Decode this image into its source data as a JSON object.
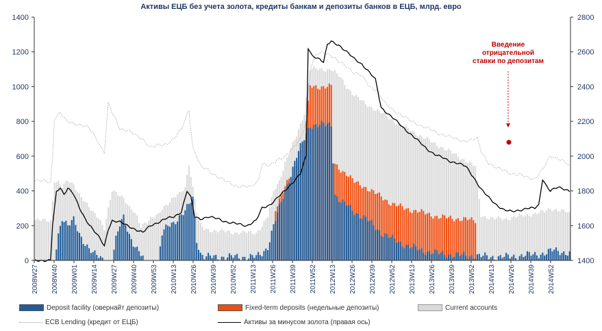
{
  "chart_data": {
    "type": "bar",
    "title": "Активы ЕЦБ без учета золота, кредиты банкам и депозиты банков в ЕЦБ, млрд. евро",
    "x_tick_labels": [
      "2008W27",
      "2008W40",
      "2009W01",
      "2009W14",
      "2009W27",
      "2009W40",
      "2009W53",
      "2010W13",
      "2010W26",
      "2010W39",
      "2010W52",
      "2011W13",
      "2011W26",
      "2011W39",
      "2011W52",
      "2012W13",
      "2012W26",
      "2012W39",
      "2012W52",
      "2013W13",
      "2013W26",
      "2013W39",
      "2013W52",
      "2014W13",
      "2014W26",
      "2014W39",
      "2014W52"
    ],
    "ylim": [
      0,
      1400
    ],
    "y_ticks": [
      0,
      200,
      400,
      600,
      800,
      1000,
      1200,
      1400
    ],
    "y2lim": [
      1400,
      2800
    ],
    "y2_ticks": [
      1400,
      1600,
      1800,
      2000,
      2200,
      2400,
      2600,
      2800
    ],
    "grid": false,
    "legend_position": "bottom",
    "annotation": {
      "lines": [
        "Введение",
        "отрицательной",
        "ставки по депозитам"
      ],
      "color": "#c00000"
    },
    "series": [
      {
        "name": "Deposit facility (овернайт депозиты)",
        "kind": "bar",
        "color": "#1f5c99",
        "keyframes": [
          [
            0,
            0
          ],
          [
            10,
            0
          ],
          [
            12,
            150
          ],
          [
            14,
            250
          ],
          [
            17,
            200
          ],
          [
            20,
            230
          ],
          [
            23,
            150
          ],
          [
            26,
            100
          ],
          [
            30,
            40
          ],
          [
            33,
            20
          ],
          [
            36,
            0
          ],
          [
            40,
            0
          ],
          [
            42,
            120
          ],
          [
            44,
            200
          ],
          [
            46,
            250
          ],
          [
            49,
            150
          ],
          [
            51,
            100
          ],
          [
            53,
            60
          ],
          [
            55,
            30
          ],
          [
            57,
            0
          ],
          [
            64,
            0
          ],
          [
            66,
            150
          ],
          [
            69,
            200
          ],
          [
            72,
            220
          ],
          [
            75,
            250
          ],
          [
            78,
            280
          ],
          [
            80,
            320
          ],
          [
            82,
            360
          ],
          [
            84,
            120
          ],
          [
            86,
            40
          ],
          [
            88,
            20
          ],
          [
            95,
            20
          ],
          [
            105,
            20
          ],
          [
            115,
            20
          ],
          [
            118,
            40
          ],
          [
            121,
            80
          ],
          [
            124,
            200
          ],
          [
            127,
            300
          ],
          [
            130,
            400
          ],
          [
            133,
            500
          ],
          [
            136,
            600
          ],
          [
            140,
            700
          ],
          [
            143,
            780
          ],
          [
            150,
            780
          ],
          [
            154,
            780
          ],
          [
            156,
            380
          ],
          [
            159,
            340
          ],
          [
            162,
            320
          ],
          [
            166,
            280
          ],
          [
            172,
            240
          ],
          [
            180,
            160
          ],
          [
            190,
            100
          ],
          [
            200,
            60
          ],
          [
            210,
            40
          ],
          [
            220,
            30
          ],
          [
            230,
            25
          ],
          [
            238,
            20
          ],
          [
            245,
            20
          ],
          [
            255,
            30
          ],
          [
            265,
            40
          ],
          [
            270,
            60
          ],
          [
            274,
            50
          ],
          [
            278,
            40
          ]
        ]
      },
      {
        "name": "Fixed-term deposits (недельные депозиты)",
        "kind": "bar",
        "color": "#f04e0f",
        "keyframes": [
          [
            0,
            0
          ],
          [
            124,
            0
          ],
          [
            125,
            300
          ],
          [
            130,
            420
          ],
          [
            136,
            560
          ],
          [
            140,
            700
          ],
          [
            143,
            1000
          ],
          [
            154,
            1000
          ],
          [
            155,
            560
          ],
          [
            158,
            530
          ],
          [
            162,
            500
          ],
          [
            166,
            450
          ],
          [
            172,
            420
          ],
          [
            178,
            380
          ],
          [
            185,
            330
          ],
          [
            192,
            300
          ],
          [
            200,
            280
          ],
          [
            210,
            250
          ],
          [
            220,
            240
          ],
          [
            229,
            230
          ],
          [
            230,
            0
          ],
          [
            278,
            0
          ]
        ]
      },
      {
        "name": "Current accounts",
        "kind": "bar",
        "color": "#dadada",
        "keyframes": [
          [
            0,
            230
          ],
          [
            8,
            230
          ],
          [
            10,
            460
          ],
          [
            12,
            450
          ],
          [
            14,
            420
          ],
          [
            17,
            460
          ],
          [
            20,
            440
          ],
          [
            23,
            380
          ],
          [
            26,
            330
          ],
          [
            30,
            280
          ],
          [
            33,
            250
          ],
          [
            36,
            180
          ],
          [
            40,
            400
          ],
          [
            42,
            390
          ],
          [
            44,
            380
          ],
          [
            46,
            360
          ],
          [
            49,
            300
          ],
          [
            51,
            280
          ],
          [
            53,
            250
          ],
          [
            55,
            200
          ],
          [
            57,
            220
          ],
          [
            64,
            260
          ],
          [
            66,
            300
          ],
          [
            69,
            330
          ],
          [
            72,
            360
          ],
          [
            75,
            380
          ],
          [
            78,
            420
          ],
          [
            80,
            560
          ],
          [
            82,
            420
          ],
          [
            84,
            280
          ],
          [
            86,
            200
          ],
          [
            88,
            180
          ],
          [
            95,
            170
          ],
          [
            105,
            160
          ],
          [
            115,
            160
          ],
          [
            118,
            200
          ],
          [
            121,
            250
          ],
          [
            124,
            400
          ],
          [
            127,
            460
          ],
          [
            130,
            560
          ],
          [
            133,
            640
          ],
          [
            136,
            720
          ],
          [
            140,
            850
          ],
          [
            143,
            1100
          ],
          [
            150,
            1100
          ],
          [
            154,
            1100
          ],
          [
            156,
            1080
          ],
          [
            159,
            1050
          ],
          [
            162,
            1000
          ],
          [
            166,
            950
          ],
          [
            172,
            900
          ],
          [
            180,
            850
          ],
          [
            190,
            780
          ],
          [
            200,
            720
          ],
          [
            210,
            660
          ],
          [
            220,
            600
          ],
          [
            229,
            540
          ],
          [
            232,
            260
          ],
          [
            238,
            240
          ],
          [
            245,
            240
          ],
          [
            255,
            260
          ],
          [
            265,
            280
          ],
          [
            268,
            300
          ],
          [
            272,
            290
          ],
          [
            276,
            280
          ],
          [
            278,
            270
          ]
        ]
      },
      {
        "name": "ECB  Lending (кредит от ЕЦБ)",
        "kind": "line",
        "dashed": true,
        "color": "#b0b0b0",
        "keyframes": [
          [
            0,
            460
          ],
          [
            8,
            450
          ],
          [
            9,
            600
          ],
          [
            10,
            820
          ],
          [
            13,
            850
          ],
          [
            16,
            800
          ],
          [
            20,
            790
          ],
          [
            24,
            780
          ],
          [
            28,
            760
          ],
          [
            32,
            700
          ],
          [
            36,
            620
          ],
          [
            38,
            900
          ],
          [
            40,
            850
          ],
          [
            44,
            760
          ],
          [
            48,
            750
          ],
          [
            52,
            720
          ],
          [
            56,
            700
          ],
          [
            60,
            650
          ],
          [
            64,
            660
          ],
          [
            68,
            670
          ],
          [
            72,
            700
          ],
          [
            76,
            750
          ],
          [
            80,
            870
          ],
          [
            82,
            650
          ],
          [
            84,
            600
          ],
          [
            86,
            540
          ],
          [
            90,
            520
          ],
          [
            95,
            480
          ],
          [
            100,
            450
          ],
          [
            105,
            430
          ],
          [
            112,
            420
          ],
          [
            116,
            460
          ],
          [
            118,
            560
          ],
          [
            122,
            540
          ],
          [
            126,
            580
          ],
          [
            130,
            600
          ],
          [
            134,
            640
          ],
          [
            138,
            700
          ],
          [
            141,
            800
          ],
          [
            143,
            1100
          ],
          [
            146,
            1180
          ],
          [
            150,
            1200
          ],
          [
            154,
            1180
          ],
          [
            158,
            1140
          ],
          [
            162,
            1120
          ],
          [
            166,
            1080
          ],
          [
            170,
            1060
          ],
          [
            174,
            1000
          ],
          [
            178,
            980
          ],
          [
            182,
            900
          ],
          [
            186,
            870
          ],
          [
            190,
            840
          ],
          [
            194,
            810
          ],
          [
            198,
            790
          ],
          [
            202,
            770
          ],
          [
            206,
            750
          ],
          [
            210,
            730
          ],
          [
            214,
            720
          ],
          [
            218,
            700
          ],
          [
            222,
            690
          ],
          [
            226,
            690
          ],
          [
            230,
            700
          ],
          [
            232,
            630
          ],
          [
            236,
            560
          ],
          [
            240,
            530
          ],
          [
            244,
            520
          ],
          [
            248,
            500
          ],
          [
            252,
            490
          ],
          [
            256,
            480
          ],
          [
            260,
            470
          ],
          [
            264,
            520
          ],
          [
            268,
            600
          ],
          [
            272,
            590
          ],
          [
            276,
            560
          ],
          [
            278,
            540
          ]
        ]
      },
      {
        "name": "Активы за минусом золота (правая ось)",
        "kind": "line",
        "axis": "right",
        "color": "#000000",
        "keyframes": [
          [
            0,
            1400
          ],
          [
            8,
            1400
          ],
          [
            9,
            1600
          ],
          [
            11,
            1790
          ],
          [
            13,
            1820
          ],
          [
            15,
            1780
          ],
          [
            17,
            1820
          ],
          [
            20,
            1780
          ],
          [
            23,
            1700
          ],
          [
            26,
            1640
          ],
          [
            30,
            1580
          ],
          [
            34,
            1520
          ],
          [
            36,
            1480
          ],
          [
            38,
            1580
          ],
          [
            40,
            1630
          ],
          [
            44,
            1620
          ],
          [
            48,
            1600
          ],
          [
            52,
            1580
          ],
          [
            56,
            1560
          ],
          [
            60,
            1600
          ],
          [
            64,
            1620
          ],
          [
            68,
            1640
          ],
          [
            72,
            1650
          ],
          [
            76,
            1680
          ],
          [
            79,
            1800
          ],
          [
            81,
            1760
          ],
          [
            83,
            1650
          ],
          [
            86,
            1640
          ],
          [
            90,
            1650
          ],
          [
            95,
            1640
          ],
          [
            100,
            1620
          ],
          [
            105,
            1610
          ],
          [
            110,
            1600
          ],
          [
            115,
            1630
          ],
          [
            118,
            1700
          ],
          [
            122,
            1720
          ],
          [
            126,
            1760
          ],
          [
            130,
            1800
          ],
          [
            134,
            1850
          ],
          [
            138,
            1900
          ],
          [
            141,
            2000
          ],
          [
            142,
            2620
          ],
          [
            144,
            2580
          ],
          [
            148,
            2560
          ],
          [
            150,
            2540
          ],
          [
            152,
            2640
          ],
          [
            154,
            2660
          ],
          [
            158,
            2640
          ],
          [
            162,
            2600
          ],
          [
            166,
            2560
          ],
          [
            170,
            2530
          ],
          [
            174,
            2480
          ],
          [
            177,
            2440
          ],
          [
            180,
            2280
          ],
          [
            184,
            2240
          ],
          [
            188,
            2200
          ],
          [
            192,
            2160
          ],
          [
            196,
            2120
          ],
          [
            200,
            2080
          ],
          [
            204,
            2040
          ],
          [
            208,
            2010
          ],
          [
            212,
            1990
          ],
          [
            216,
            1970
          ],
          [
            220,
            1960
          ],
          [
            224,
            1940
          ],
          [
            228,
            1880
          ],
          [
            232,
            1810
          ],
          [
            236,
            1760
          ],
          [
            240,
            1720
          ],
          [
            244,
            1690
          ],
          [
            248,
            1680
          ],
          [
            252,
            1690
          ],
          [
            256,
            1700
          ],
          [
            260,
            1700
          ],
          [
            262,
            1720
          ],
          [
            264,
            1870
          ],
          [
            266,
            1830
          ],
          [
            268,
            1800
          ],
          [
            272,
            1820
          ],
          [
            276,
            1810
          ],
          [
            278,
            1800
          ]
        ]
      }
    ]
  }
}
